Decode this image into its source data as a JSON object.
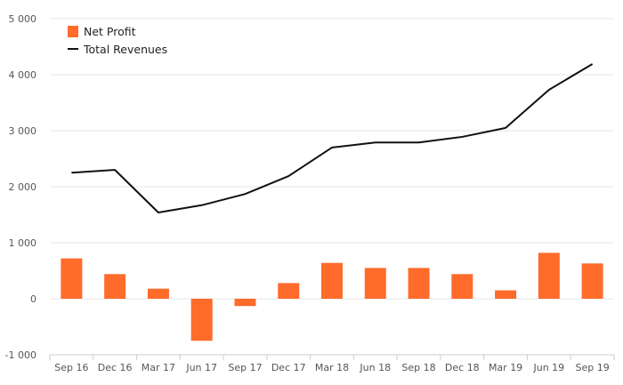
{
  "chart_data": {
    "type": "bar+line",
    "categories": [
      "Sep 16",
      "Dec 16",
      "Mar 17",
      "Jun 17",
      "Sep 17",
      "Dec 17",
      "Mar 18",
      "Jun 18",
      "Sep 18",
      "Dec 18",
      "Mar 19",
      "Jun 19",
      "Sep 19"
    ],
    "series": [
      {
        "name": "Net Profit",
        "kind": "bar",
        "color": "#ff6b2b",
        "values": [
          720,
          440,
          180,
          -750,
          -130,
          280,
          640,
          550,
          550,
          440,
          150,
          820,
          630
        ]
      },
      {
        "name": "Total Revenues",
        "kind": "line",
        "color": "#111111",
        "values": [
          2250,
          2300,
          1540,
          1670,
          1870,
          2190,
          2700,
          2790,
          2790,
          2890,
          3050,
          3730,
          4190
        ]
      }
    ],
    "y_ticks": [
      "-1 000",
      "0",
      "1 000",
      "2 000",
      "3 000",
      "4 000",
      "5 000"
    ],
    "ylim": [
      -1000,
      5000
    ],
    "grid": true,
    "legend_position": "top-left"
  }
}
